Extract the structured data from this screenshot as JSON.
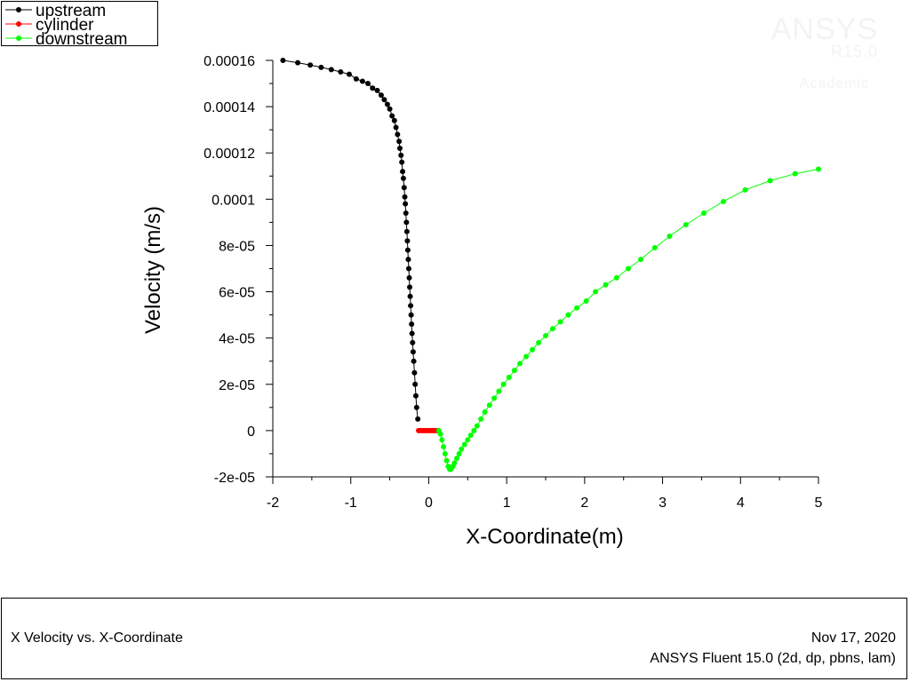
{
  "watermark": {
    "brand": "ANSYS",
    "version": "R15.0",
    "edition": "Academic"
  },
  "footer": {
    "plot_title": "X Velocity vs. X-Coordinate",
    "date": "Nov 17, 2020",
    "software": "ANSYS Fluent 15.0 (2d, dp, pbns, lam)"
  },
  "chart_data": {
    "type": "scatter",
    "xlabel": "X-Coordinate(m)",
    "ylabel": "Velocity (m/s)",
    "xlim": [
      -2,
      5
    ],
    "ylim": [
      -2e-05,
      0.00016
    ],
    "xticks": [
      -2,
      -1,
      0,
      1,
      2,
      3,
      4,
      5
    ],
    "xtick_labels": [
      "-2",
      "-1",
      "0",
      "1",
      "2",
      "3",
      "4",
      "5"
    ],
    "yticks": [
      -2e-05,
      0,
      2e-05,
      4e-05,
      6e-05,
      8e-05,
      0.0001,
      0.00012,
      0.00014,
      0.00016
    ],
    "ytick_labels": [
      "-2e-05",
      "0",
      "2e-05",
      "4e-05",
      "6e-05",
      "8e-05",
      "0.0001",
      "0.00012",
      "0.00014",
      "0.00016"
    ],
    "legend_position": "top-left",
    "series": [
      {
        "name": "upstream",
        "color": "#000000",
        "points": [
          [
            -1.87,
            0.00016
          ],
          [
            -1.68,
            0.000159
          ],
          [
            -1.52,
            0.000158
          ],
          [
            -1.38,
            0.000157
          ],
          [
            -1.25,
            0.000156
          ],
          [
            -1.13,
            0.000155
          ],
          [
            -1.02,
            0.000154
          ],
          [
            -0.93,
            0.000152
          ],
          [
            -0.85,
            0.000151
          ],
          [
            -0.78,
            0.00015
          ],
          [
            -0.72,
            0.000148
          ],
          [
            -0.66,
            0.000147
          ],
          [
            -0.61,
            0.000145
          ],
          [
            -0.57,
            0.000143
          ],
          [
            -0.53,
            0.000141
          ],
          [
            -0.5,
            0.000139
          ],
          [
            -0.47,
            0.000136
          ],
          [
            -0.44,
            0.000134
          ],
          [
            -0.42,
            0.000131
          ],
          [
            -0.4,
            0.000128
          ],
          [
            -0.38,
            0.000125
          ],
          [
            -0.37,
            0.000122
          ],
          [
            -0.355,
            0.000119
          ],
          [
            -0.345,
            0.000116
          ],
          [
            -0.335,
            0.000112
          ],
          [
            -0.325,
            0.000109
          ],
          [
            -0.315,
            0.000105
          ],
          [
            -0.307,
            0.000101
          ],
          [
            -0.3,
            9.8e-05
          ],
          [
            -0.293,
            9.4e-05
          ],
          [
            -0.286,
            9e-05
          ],
          [
            -0.28,
            8.6e-05
          ],
          [
            -0.274,
            8.2e-05
          ],
          [
            -0.268,
            7.8e-05
          ],
          [
            -0.262,
            7.4e-05
          ],
          [
            -0.256,
            7e-05
          ],
          [
            -0.25,
            6.6e-05
          ],
          [
            -0.244,
            6.2e-05
          ],
          [
            -0.238,
            5.8e-05
          ],
          [
            -0.232,
            5.4e-05
          ],
          [
            -0.226,
            5e-05
          ],
          [
            -0.22,
            4.6e-05
          ],
          [
            -0.214,
            4.2e-05
          ],
          [
            -0.207,
            3.8e-05
          ],
          [
            -0.2,
            3.4e-05
          ],
          [
            -0.192,
            3e-05
          ],
          [
            -0.183,
            2.5e-05
          ],
          [
            -0.174,
            2e-05
          ],
          [
            -0.165,
            1.5e-05
          ],
          [
            -0.155,
            1e-05
          ],
          [
            -0.14,
            5e-06
          ]
        ]
      },
      {
        "name": "cylinder",
        "color": "#ff0000",
        "points": [
          [
            -0.13,
            0
          ],
          [
            -0.11,
            0
          ],
          [
            -0.09,
            0
          ],
          [
            -0.07,
            0
          ],
          [
            -0.05,
            0
          ],
          [
            -0.03,
            0
          ],
          [
            -0.01,
            0
          ],
          [
            0.01,
            0
          ],
          [
            0.03,
            0
          ],
          [
            0.05,
            0
          ],
          [
            0.07,
            0
          ],
          [
            0.09,
            0
          ],
          [
            0.11,
            0
          ]
        ]
      },
      {
        "name": "downstream",
        "color": "#00ff00",
        "points": [
          [
            0.13,
            0.0
          ],
          [
            0.15,
            -1.5e-06
          ],
          [
            0.17,
            -4e-06
          ],
          [
            0.19,
            -7e-06
          ],
          [
            0.21,
            -1e-05
          ],
          [
            0.23,
            -1.3e-05
          ],
          [
            0.25,
            -1.55e-05
          ],
          [
            0.27,
            -1.68e-05
          ],
          [
            0.29,
            -1.65e-05
          ],
          [
            0.31,
            -1.55e-05
          ],
          [
            0.33,
            -1.4e-05
          ],
          [
            0.36,
            -1.2e-05
          ],
          [
            0.39,
            -1e-05
          ],
          [
            0.42,
            -8e-06
          ],
          [
            0.46,
            -6e-06
          ],
          [
            0.5,
            -4e-06
          ],
          [
            0.54,
            -2e-06
          ],
          [
            0.58,
            0.0
          ],
          [
            0.62,
            2e-06
          ],
          [
            0.67,
            5e-06
          ],
          [
            0.72,
            8e-06
          ],
          [
            0.78,
            1.1e-05
          ],
          [
            0.84,
            1.4e-05
          ],
          [
            0.9,
            1.7e-05
          ],
          [
            0.96,
            2e-05
          ],
          [
            1.03,
            2.3e-05
          ],
          [
            1.1,
            2.6e-05
          ],
          [
            1.17,
            2.9e-05
          ],
          [
            1.25,
            3.2e-05
          ],
          [
            1.33,
            3.5e-05
          ],
          [
            1.41,
            3.8e-05
          ],
          [
            1.5,
            4.1e-05
          ],
          [
            1.59,
            4.4e-05
          ],
          [
            1.69,
            4.7e-05
          ],
          [
            1.79,
            5e-05
          ],
          [
            1.9,
            5.3e-05
          ],
          [
            2.02,
            5.6e-05
          ],
          [
            2.14,
            6e-05
          ],
          [
            2.27,
            6.3e-05
          ],
          [
            2.41,
            6.6e-05
          ],
          [
            2.56,
            7e-05
          ],
          [
            2.72,
            7.4e-05
          ],
          [
            2.9,
            7.9e-05
          ],
          [
            3.09,
            8.4e-05
          ],
          [
            3.3,
            8.9e-05
          ],
          [
            3.53,
            9.4e-05
          ],
          [
            3.78,
            9.9e-05
          ],
          [
            4.06,
            0.000104
          ],
          [
            4.38,
            0.000108
          ],
          [
            4.7,
            0.000111
          ],
          [
            5.0,
            0.000113
          ]
        ]
      }
    ]
  }
}
